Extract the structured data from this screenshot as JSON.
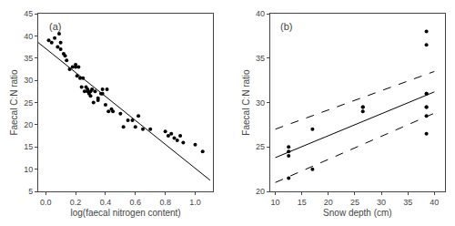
{
  "chart_data": [
    {
      "type": "scatter",
      "annotations": [
        "(a)"
      ],
      "xlabel": "log(faecal nitrogen content)",
      "ylabel": "Faecal C:N ratio",
      "xlim": [
        -0.05,
        1.12
      ],
      "ylim": [
        5,
        45
      ],
      "xticks": [
        0.0,
        0.2,
        0.4,
        0.6,
        0.8,
        1.0
      ],
      "yticks": [
        5,
        10,
        15,
        20,
        25,
        30,
        35,
        40,
        45
      ],
      "grid": false,
      "series": [
        {
          "type": "scatter",
          "marker": "circle",
          "color": "#000000",
          "x": [
            0.02,
            0.04,
            0.06,
            0.08,
            0.09,
            0.1,
            0.1,
            0.12,
            0.13,
            0.14,
            0.16,
            0.18,
            0.2,
            0.2,
            0.21,
            0.22,
            0.23,
            0.24,
            0.25,
            0.26,
            0.27,
            0.28,
            0.28,
            0.29,
            0.3,
            0.3,
            0.31,
            0.32,
            0.33,
            0.35,
            0.35,
            0.37,
            0.38,
            0.38,
            0.4,
            0.41,
            0.42,
            0.44,
            0.45,
            0.5,
            0.52,
            0.55,
            0.58,
            0.6,
            0.62,
            0.65,
            0.7,
            0.8,
            0.82,
            0.84,
            0.86,
            0.88,
            0.9,
            0.92,
            1.0,
            1.05
          ],
          "values": [
            39.0,
            38.5,
            39.5,
            37.5,
            40.5,
            38.5,
            37.0,
            36.0,
            35.5,
            34.5,
            32.5,
            33.0,
            33.5,
            33.0,
            31.0,
            33.0,
            30.5,
            28.5,
            30.5,
            27.5,
            28.5,
            28.0,
            27.5,
            27.0,
            26.5,
            27.5,
            28.0,
            25.0,
            27.5,
            25.5,
            26.0,
            27.0,
            28.0,
            27.0,
            24.5,
            28.0,
            23.0,
            23.5,
            23.0,
            22.5,
            19.5,
            21.0,
            21.0,
            19.5,
            22.0,
            19.0,
            19.0,
            18.5,
            17.5,
            18.0,
            17.0,
            16.5,
            17.5,
            16.0,
            15.5,
            14.0
          ]
        },
        {
          "type": "line",
          "line_style": "solid",
          "color": "#000000",
          "x": [
            -0.05,
            1.1
          ],
          "values": [
            38.5,
            7.5
          ]
        }
      ]
    },
    {
      "type": "scatter",
      "annotations": [
        "(b)"
      ],
      "xlabel": "Snow depth (cm)",
      "ylabel": "Faecal C:N ratio",
      "xlim": [
        9,
        42
      ],
      "ylim": [
        20,
        40
      ],
      "xticks": [
        10,
        15,
        20,
        25,
        30,
        35,
        40
      ],
      "yticks": [
        20,
        25,
        30,
        35,
        40
      ],
      "grid": false,
      "series": [
        {
          "type": "scatter",
          "marker": "circle",
          "color": "#000000",
          "x": [
            12.5,
            12.5,
            12.5,
            12.5,
            17.0,
            17.0,
            26.5,
            26.5,
            26.5,
            38.5,
            38.5,
            38.5,
            38.5,
            38.5,
            38.5,
            38.5,
            38.5
          ],
          "values": [
            21.5,
            24.5,
            25.0,
            24.0,
            27.0,
            22.5,
            29.0,
            29.5,
            29.5,
            29.5,
            29.5,
            31.0,
            31.0,
            28.5,
            26.5,
            36.5,
            38.0
          ]
        },
        {
          "type": "line",
          "line_style": "solid",
          "color": "#000000",
          "x": [
            10,
            40
          ],
          "values": [
            23.8,
            31.2
          ]
        },
        {
          "type": "line",
          "line_style": "dashed",
          "color": "#000000",
          "x": [
            10,
            40
          ],
          "values": [
            27.0,
            33.5
          ]
        },
        {
          "type": "line",
          "line_style": "dashed",
          "color": "#000000",
          "x": [
            10,
            40
          ],
          "values": [
            21.0,
            28.8
          ]
        }
      ]
    }
  ]
}
